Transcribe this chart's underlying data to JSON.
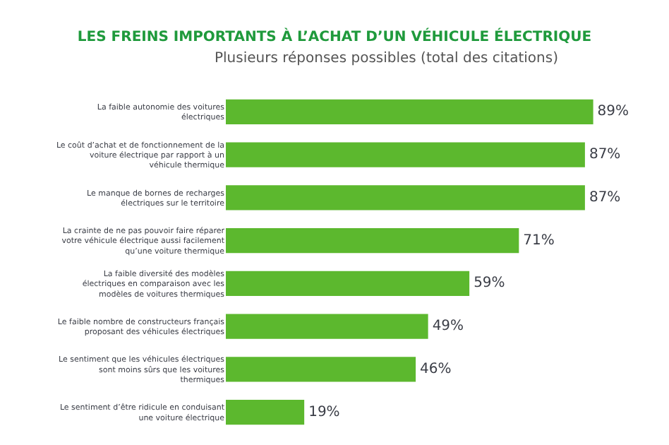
{
  "chart_data": {
    "type": "bar",
    "orientation": "horizontal",
    "title": "LES FREINS IMPORTANTS À L’ACHAT D’UN VÉHICULE ÉLECTRIQUE",
    "subtitle": "Plusieurs réponses possibles (total des citations)",
    "categories": [
      "La faible autonomie des voitures électriques",
      "Le coût d’achat et de fonctionnement de la voiture électrique par rapport à un véhicule thermique",
      "Le manque de bornes de recharges électriques sur le territoire",
      "La crainte de ne pas pouvoir faire réparer votre véhicule électrique aussi facilement qu’une voiture thermique",
      "La faible diversité des modèles électriques en comparaison avec les modèles de voitures thermiques",
      "Le faible nombre de constructeurs français proposant des véhicules électriques",
      "Le sentiment que les véhicules électriques sont moins sûrs que les voitures thermiques",
      "Le sentiment d’être ridicule en conduisant une voiture électrique"
    ],
    "values": [
      89,
      87,
      87,
      71,
      59,
      49,
      46,
      19
    ],
    "value_labels": [
      "89%",
      "87%",
      "87%",
      "71%",
      "59%",
      "49%",
      "46%",
      "19%"
    ],
    "color": "#5cb82e",
    "tick_labels": "y",
    "legend": false
  }
}
